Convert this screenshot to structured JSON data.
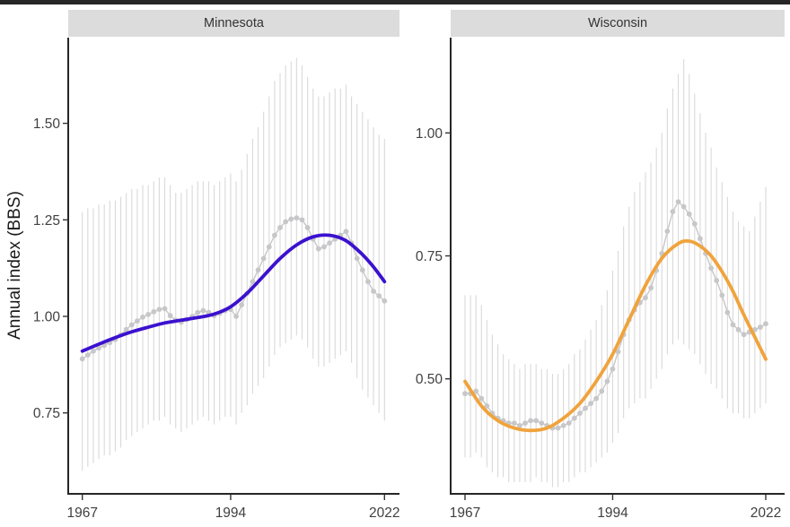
{
  "window": {
    "top_banner_color": "#262626",
    "background_color": "#FFFFFF"
  },
  "chart_data": {
    "type": "line",
    "title": "",
    "subtitle": "",
    "xlabel": "",
    "ylabel": "Annual index (BBS)",
    "legend": "none",
    "grid": "off",
    "facets": [
      "Minnesota",
      "Wisconsin"
    ],
    "x": [
      1967,
      1968,
      1969,
      1970,
      1971,
      1972,
      1973,
      1974,
      1975,
      1976,
      1977,
      1978,
      1979,
      1980,
      1981,
      1982,
      1983,
      1984,
      1985,
      1986,
      1987,
      1988,
      1989,
      1990,
      1991,
      1992,
      1993,
      1994,
      1995,
      1996,
      1997,
      1998,
      1999,
      2000,
      2001,
      2002,
      2003,
      2004,
      2005,
      2006,
      2007,
      2008,
      2009,
      2010,
      2011,
      2012,
      2013,
      2014,
      2015,
      2016,
      2017,
      2018,
      2019,
      2020,
      2021,
      2022
    ],
    "x_ticks": [
      {
        "value": 1967,
        "label": "1967"
      },
      {
        "value": 1994,
        "label": "1994"
      },
      {
        "value": 2022,
        "label": "2022"
      }
    ],
    "panels": [
      {
        "label": "Minnesota",
        "smooth_color": "#3B11CF",
        "point_color": "#C7C7C9",
        "errorbar_color": "#D9D9D9",
        "ylim": [
          0.54,
          1.72
        ],
        "y_ticks": [
          {
            "value": 1.5,
            "label": "1.50"
          },
          {
            "value": 1.25,
            "label": "1.25"
          },
          {
            "value": 1.0,
            "label": "1.00"
          },
          {
            "value": 0.75,
            "label": "0.75"
          }
        ],
        "series": {
          "annual_index": [
            0.89,
            0.9,
            0.91,
            0.918,
            0.925,
            0.932,
            0.94,
            0.952,
            0.966,
            0.978,
            0.988,
            0.998,
            1.005,
            1.012,
            1.018,
            1.02,
            1.002,
            0.99,
            0.985,
            0.992,
            1.0,
            1.01,
            1.015,
            1.01,
            1.002,
            1.008,
            1.015,
            1.018,
            1.0,
            1.03,
            1.06,
            1.09,
            1.12,
            1.15,
            1.18,
            1.21,
            1.23,
            1.245,
            1.252,
            1.255,
            1.25,
            1.23,
            1.2,
            1.175,
            1.18,
            1.19,
            1.2,
            1.21,
            1.22,
            1.19,
            1.15,
            1.12,
            1.09,
            1.065,
            1.053,
            1.04
          ],
          "ci_low": [
            0.6,
            0.61,
            0.62,
            0.63,
            0.64,
            0.64,
            0.65,
            0.66,
            0.68,
            0.69,
            0.7,
            0.71,
            0.72,
            0.73,
            0.73,
            0.74,
            0.72,
            0.71,
            0.7,
            0.71,
            0.72,
            0.73,
            0.74,
            0.73,
            0.72,
            0.73,
            0.74,
            0.74,
            0.72,
            0.75,
            0.77,
            0.8,
            0.82,
            0.84,
            0.87,
            0.9,
            0.92,
            0.93,
            0.94,
            0.95,
            0.94,
            0.92,
            0.89,
            0.87,
            0.87,
            0.88,
            0.89,
            0.9,
            0.91,
            0.88,
            0.84,
            0.81,
            0.79,
            0.77,
            0.75,
            0.73
          ],
          "ci_high": [
            1.27,
            1.28,
            1.28,
            1.29,
            1.29,
            1.3,
            1.3,
            1.31,
            1.32,
            1.33,
            1.33,
            1.34,
            1.34,
            1.35,
            1.36,
            1.36,
            1.34,
            1.32,
            1.32,
            1.33,
            1.34,
            1.35,
            1.35,
            1.35,
            1.34,
            1.35,
            1.36,
            1.37,
            1.35,
            1.38,
            1.42,
            1.46,
            1.49,
            1.53,
            1.57,
            1.61,
            1.63,
            1.65,
            1.66,
            1.67,
            1.65,
            1.62,
            1.59,
            1.57,
            1.57,
            1.58,
            1.59,
            1.59,
            1.6,
            1.57,
            1.55,
            1.53,
            1.51,
            1.49,
            1.47,
            1.46
          ],
          "smooth": {
            "years": [
              1967,
              1970,
              1973,
              1976,
              1979,
              1982,
              1985,
              1988,
              1991,
              1994,
              1997,
              2000,
              2003,
              2006,
              2009,
              2012,
              2015,
              2018,
              2020,
              2022
            ],
            "values": [
              0.91,
              0.928,
              0.945,
              0.96,
              0.972,
              0.983,
              0.99,
              0.997,
              1.006,
              1.025,
              1.06,
              1.105,
              1.15,
              1.185,
              1.206,
              1.21,
              1.196,
              1.16,
              1.128,
              1.09
            ]
          }
        }
      },
      {
        "label": "Wisconsin",
        "smooth_color": "#F0A33C",
        "point_color": "#C7C7C9",
        "errorbar_color": "#D9D9D9",
        "ylim": [
          0.26,
          1.19
        ],
        "y_ticks": [
          {
            "value": 1.0,
            "label": "1.00"
          },
          {
            "value": 0.75,
            "label": "0.75"
          },
          {
            "value": 0.5,
            "label": "0.50"
          }
        ],
        "series": {
          "annual_index": [
            0.47,
            0.47,
            0.475,
            0.46,
            0.445,
            0.43,
            0.42,
            0.415,
            0.41,
            0.41,
            0.405,
            0.41,
            0.415,
            0.415,
            0.41,
            0.405,
            0.4,
            0.4,
            0.405,
            0.41,
            0.42,
            0.43,
            0.44,
            0.45,
            0.46,
            0.475,
            0.495,
            0.52,
            0.555,
            0.59,
            0.62,
            0.64,
            0.655,
            0.665,
            0.685,
            0.72,
            0.755,
            0.8,
            0.84,
            0.86,
            0.85,
            0.835,
            0.815,
            0.785,
            0.755,
            0.725,
            0.7,
            0.67,
            0.635,
            0.61,
            0.6,
            0.59,
            0.595,
            0.6,
            0.605,
            0.612
          ],
          "ci_low": [
            0.34,
            0.34,
            0.35,
            0.34,
            0.32,
            0.31,
            0.3,
            0.3,
            0.29,
            0.29,
            0.29,
            0.29,
            0.29,
            0.3,
            0.29,
            0.29,
            0.28,
            0.28,
            0.29,
            0.29,
            0.3,
            0.31,
            0.31,
            0.32,
            0.33,
            0.34,
            0.35,
            0.37,
            0.39,
            0.42,
            0.44,
            0.45,
            0.46,
            0.46,
            0.48,
            0.5,
            0.52,
            0.55,
            0.57,
            0.58,
            0.57,
            0.56,
            0.55,
            0.53,
            0.51,
            0.49,
            0.48,
            0.46,
            0.44,
            0.43,
            0.43,
            0.42,
            0.42,
            0.43,
            0.44,
            0.45
          ],
          "ci_high": [
            0.67,
            0.67,
            0.67,
            0.65,
            0.62,
            0.59,
            0.57,
            0.55,
            0.54,
            0.53,
            0.52,
            0.53,
            0.53,
            0.53,
            0.52,
            0.52,
            0.51,
            0.51,
            0.52,
            0.53,
            0.55,
            0.56,
            0.58,
            0.6,
            0.62,
            0.65,
            0.68,
            0.72,
            0.76,
            0.81,
            0.85,
            0.88,
            0.9,
            0.92,
            0.94,
            0.97,
            1.0,
            1.05,
            1.09,
            1.12,
            1.15,
            1.12,
            1.08,
            1.04,
            1.0,
            0.97,
            0.93,
            0.9,
            0.87,
            0.84,
            0.82,
            0.81,
            0.8,
            0.83,
            0.86,
            0.89
          ],
          "smooth": {
            "years": [
              1967,
              1970,
              1973,
              1976,
              1979,
              1982,
              1985,
              1988,
              1991,
              1994,
              1997,
              2000,
              2003,
              2006,
              2008,
              2010,
              2012,
              2014,
              2016,
              2018,
              2020,
              2022
            ],
            "values": [
              0.495,
              0.445,
              0.415,
              0.4,
              0.395,
              0.4,
              0.42,
              0.45,
              0.495,
              0.55,
              0.62,
              0.69,
              0.745,
              0.775,
              0.78,
              0.77,
              0.75,
              0.718,
              0.678,
              0.63,
              0.585,
              0.54
            ]
          }
        }
      }
    ]
  }
}
